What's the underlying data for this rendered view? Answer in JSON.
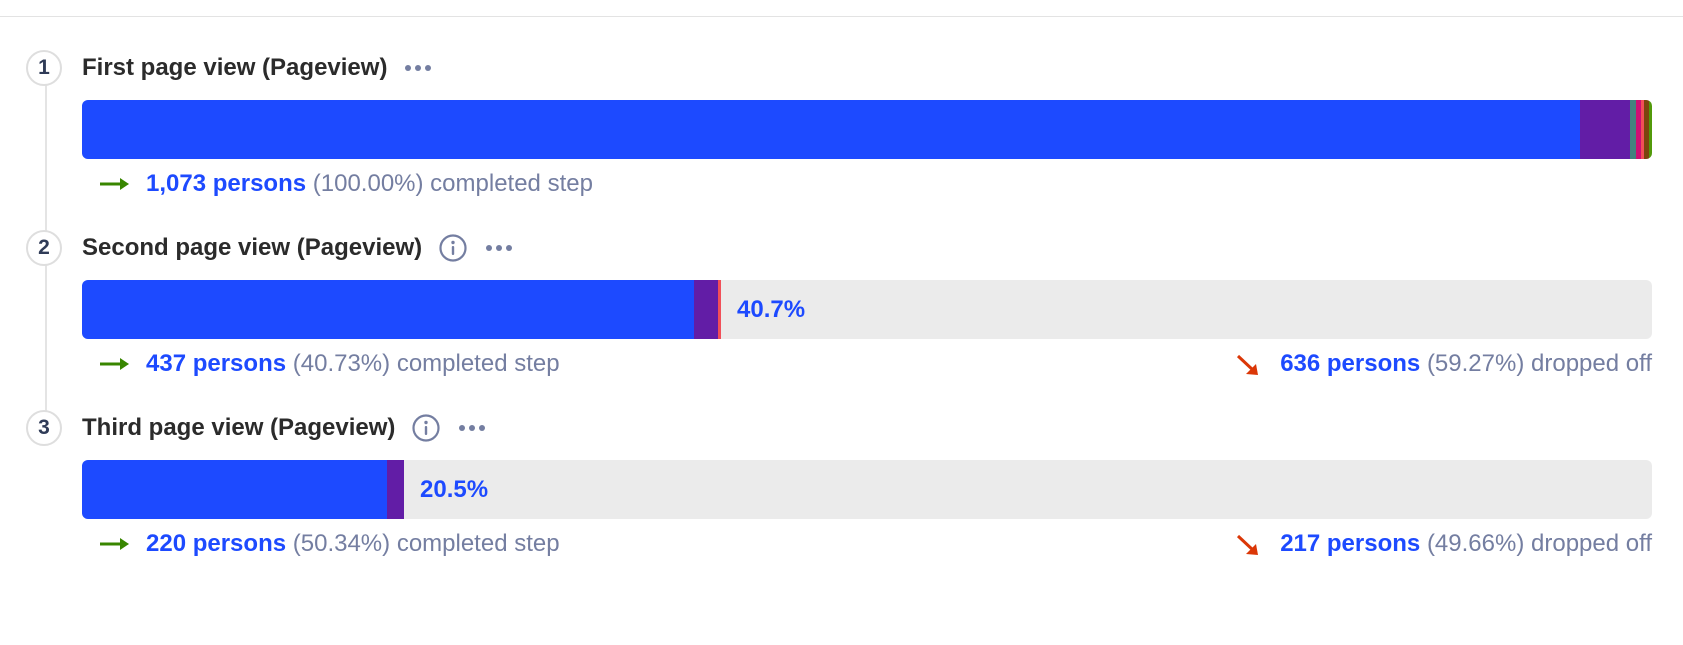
{
  "colors": {
    "primary": "#1d4aff",
    "secondary": "#621da6",
    "track": "#ebebeb",
    "complete_arrow": "#388600",
    "drop_arrow": "#db3707"
  },
  "steps": [
    {
      "number": "1",
      "title": "First page view (Pageview)",
      "has_info": false,
      "conversion_fraction": 1.0,
      "breakdown": [
        {
          "fraction": 0.954,
          "color": "#1d4aff"
        },
        {
          "fraction": 0.032,
          "color": "#621da6"
        },
        {
          "fraction": 0.004,
          "color": "#42827e"
        },
        {
          "fraction": 0.003,
          "color": "#ce0e74"
        },
        {
          "fraction": 0.002,
          "color": "#f14f58"
        },
        {
          "fraction": 0.003,
          "color": "#7c440e"
        },
        {
          "fraction": 0.002,
          "color": "#529a0a"
        }
      ],
      "bar_label": "",
      "completed": {
        "persons": "1,073 persons",
        "pct": "(100.00%)",
        "text": "completed step"
      },
      "dropped": null
    },
    {
      "number": "2",
      "title": "Second page view (Pageview)",
      "has_info": true,
      "conversion_fraction": 0.407,
      "breakdown": [
        {
          "fraction": 0.39,
          "color": "#1d4aff"
        },
        {
          "fraction": 0.015,
          "color": "#621da6"
        },
        {
          "fraction": 0.002,
          "color": "#f14f58"
        }
      ],
      "bar_label": "40.7%",
      "completed": {
        "persons": "437 persons",
        "pct": "(40.73%)",
        "text": "completed step"
      },
      "dropped": {
        "persons": "636 persons",
        "pct": "(59.27%)",
        "text": "dropped off"
      }
    },
    {
      "number": "3",
      "title": "Third page view (Pageview)",
      "has_info": true,
      "conversion_fraction": 0.205,
      "breakdown": [
        {
          "fraction": 0.194,
          "color": "#1d4aff"
        },
        {
          "fraction": 0.011,
          "color": "#621da6"
        }
      ],
      "bar_label": "20.5%",
      "completed": {
        "persons": "220 persons",
        "pct": "(50.34%)",
        "text": "completed step"
      },
      "dropped": {
        "persons": "217 persons",
        "pct": "(49.66%)",
        "text": "dropped off"
      }
    }
  ]
}
